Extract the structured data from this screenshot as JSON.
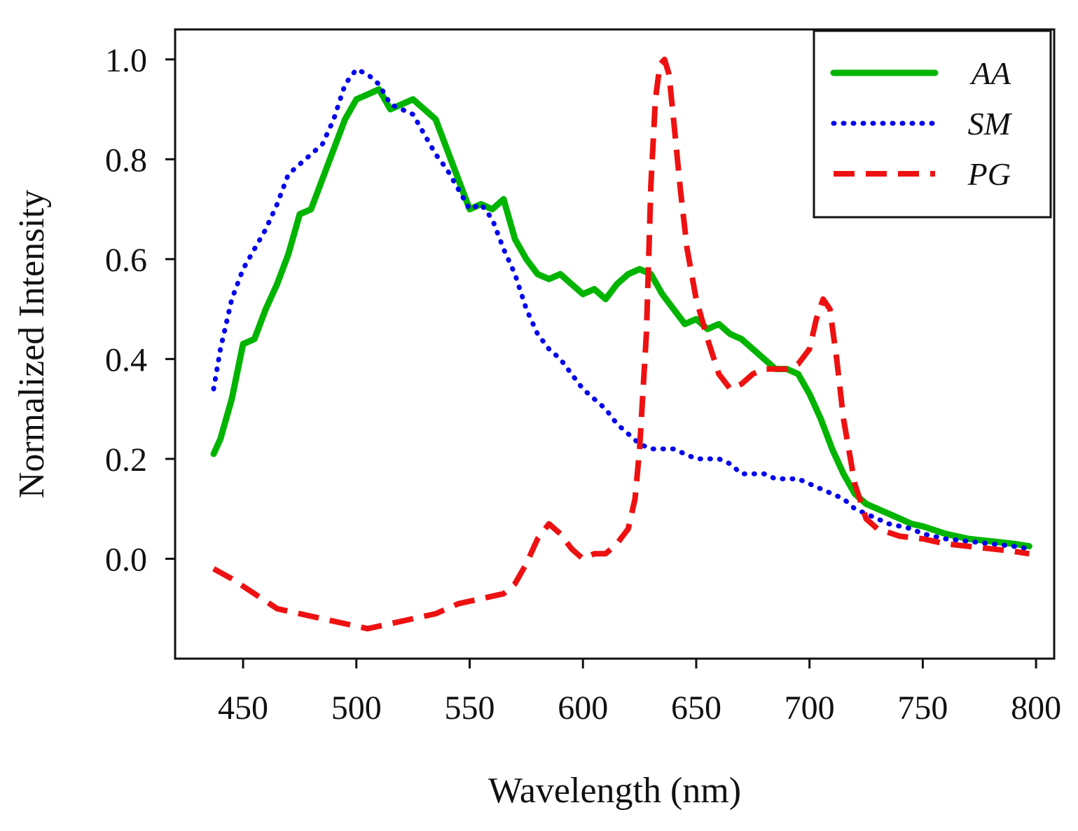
{
  "chart_data": {
    "type": "line",
    "title": "",
    "xlabel": "Wavelength (nm)",
    "ylabel": "Normalized Intensity",
    "xlim": [
      420,
      808
    ],
    "ylim": [
      -0.2,
      1.06
    ],
    "xticks": [
      450,
      500,
      550,
      600,
      650,
      700,
      750,
      800
    ],
    "yticks": [
      0.0,
      0.2,
      0.4,
      0.6,
      0.8,
      1.0
    ],
    "xtick_labels": [
      "450",
      "500",
      "550",
      "600",
      "650",
      "700",
      "750",
      "800"
    ],
    "ytick_labels": [
      "0.0",
      "0.2",
      "0.4",
      "0.6",
      "0.8",
      "1.0"
    ],
    "grid": false,
    "legend_position": "top-right",
    "series": [
      {
        "name": "AA",
        "color": "#00b400",
        "style": "solid",
        "x": [
          437,
          440,
          445,
          450,
          455,
          460,
          465,
          470,
          475,
          480,
          485,
          490,
          495,
          500,
          505,
          510,
          515,
          520,
          525,
          530,
          535,
          540,
          545,
          550,
          555,
          560,
          565,
          570,
          575,
          580,
          585,
          590,
          595,
          600,
          605,
          610,
          615,
          620,
          625,
          630,
          635,
          640,
          645,
          650,
          655,
          660,
          665,
          670,
          675,
          680,
          685,
          690,
          695,
          700,
          705,
          710,
          715,
          720,
          725,
          730,
          735,
          740,
          745,
          750,
          760,
          770,
          780,
          790,
          797
        ],
        "values": [
          0.21,
          0.24,
          0.32,
          0.43,
          0.44,
          0.5,
          0.55,
          0.61,
          0.69,
          0.7,
          0.76,
          0.82,
          0.88,
          0.92,
          0.93,
          0.94,
          0.9,
          0.91,
          0.92,
          0.9,
          0.88,
          0.82,
          0.76,
          0.7,
          0.71,
          0.7,
          0.72,
          0.64,
          0.6,
          0.57,
          0.56,
          0.57,
          0.55,
          0.53,
          0.54,
          0.52,
          0.55,
          0.57,
          0.58,
          0.57,
          0.53,
          0.5,
          0.47,
          0.48,
          0.46,
          0.47,
          0.45,
          0.44,
          0.42,
          0.4,
          0.38,
          0.38,
          0.37,
          0.33,
          0.28,
          0.22,
          0.17,
          0.13,
          0.11,
          0.1,
          0.09,
          0.08,
          0.07,
          0.065,
          0.05,
          0.04,
          0.035,
          0.03,
          0.025
        ]
      },
      {
        "name": "SM",
        "color": "#0000ee",
        "style": "dotted",
        "x": [
          437,
          440,
          445,
          450,
          455,
          460,
          465,
          470,
          475,
          480,
          485,
          490,
          495,
          500,
          505,
          510,
          515,
          520,
          525,
          530,
          535,
          540,
          545,
          550,
          555,
          560,
          565,
          570,
          575,
          580,
          585,
          590,
          595,
          600,
          605,
          610,
          615,
          620,
          625,
          630,
          635,
          640,
          645,
          650,
          655,
          660,
          665,
          670,
          675,
          680,
          685,
          690,
          695,
          700,
          705,
          710,
          715,
          720,
          725,
          730,
          735,
          740,
          745,
          750,
          760,
          770,
          780,
          790,
          797
        ],
        "values": [
          0.34,
          0.42,
          0.52,
          0.58,
          0.62,
          0.66,
          0.71,
          0.77,
          0.79,
          0.81,
          0.83,
          0.88,
          0.95,
          0.98,
          0.97,
          0.95,
          0.91,
          0.9,
          0.89,
          0.85,
          0.81,
          0.78,
          0.74,
          0.7,
          0.71,
          0.68,
          0.62,
          0.57,
          0.5,
          0.45,
          0.42,
          0.4,
          0.37,
          0.34,
          0.32,
          0.3,
          0.27,
          0.25,
          0.23,
          0.22,
          0.22,
          0.22,
          0.21,
          0.2,
          0.2,
          0.2,
          0.19,
          0.17,
          0.17,
          0.17,
          0.16,
          0.16,
          0.16,
          0.15,
          0.14,
          0.13,
          0.12,
          0.1,
          0.09,
          0.08,
          0.07,
          0.065,
          0.06,
          0.05,
          0.04,
          0.035,
          0.03,
          0.025,
          0.02
        ]
      },
      {
        "name": "PG",
        "color": "#ee1111",
        "style": "dashed",
        "x": [
          437,
          445,
          455,
          465,
          475,
          485,
          495,
          505,
          515,
          525,
          535,
          545,
          555,
          565,
          570,
          575,
          580,
          585,
          590,
          595,
          600,
          605,
          610,
          615,
          620,
          623,
          625,
          628,
          630,
          632,
          634,
          636,
          638,
          640,
          643,
          646,
          650,
          655,
          660,
          665,
          670,
          675,
          680,
          685,
          690,
          695,
          700,
          703,
          706,
          709,
          712,
          715,
          720,
          725,
          730,
          740,
          750,
          760,
          770,
          780,
          790,
          797
        ],
        "values": [
          -0.02,
          -0.04,
          -0.07,
          -0.1,
          -0.11,
          -0.12,
          -0.13,
          -0.14,
          -0.13,
          -0.12,
          -0.11,
          -0.09,
          -0.08,
          -0.07,
          -0.05,
          -0.01,
          0.04,
          0.07,
          0.05,
          0.02,
          0.0,
          0.01,
          0.01,
          0.03,
          0.06,
          0.12,
          0.22,
          0.45,
          0.75,
          0.92,
          0.99,
          1.0,
          0.97,
          0.88,
          0.74,
          0.62,
          0.52,
          0.44,
          0.37,
          0.34,
          0.35,
          0.37,
          0.38,
          0.38,
          0.38,
          0.39,
          0.42,
          0.48,
          0.52,
          0.5,
          0.4,
          0.28,
          0.15,
          0.08,
          0.06,
          0.045,
          0.04,
          0.03,
          0.025,
          0.02,
          0.015,
          0.01
        ]
      }
    ]
  }
}
